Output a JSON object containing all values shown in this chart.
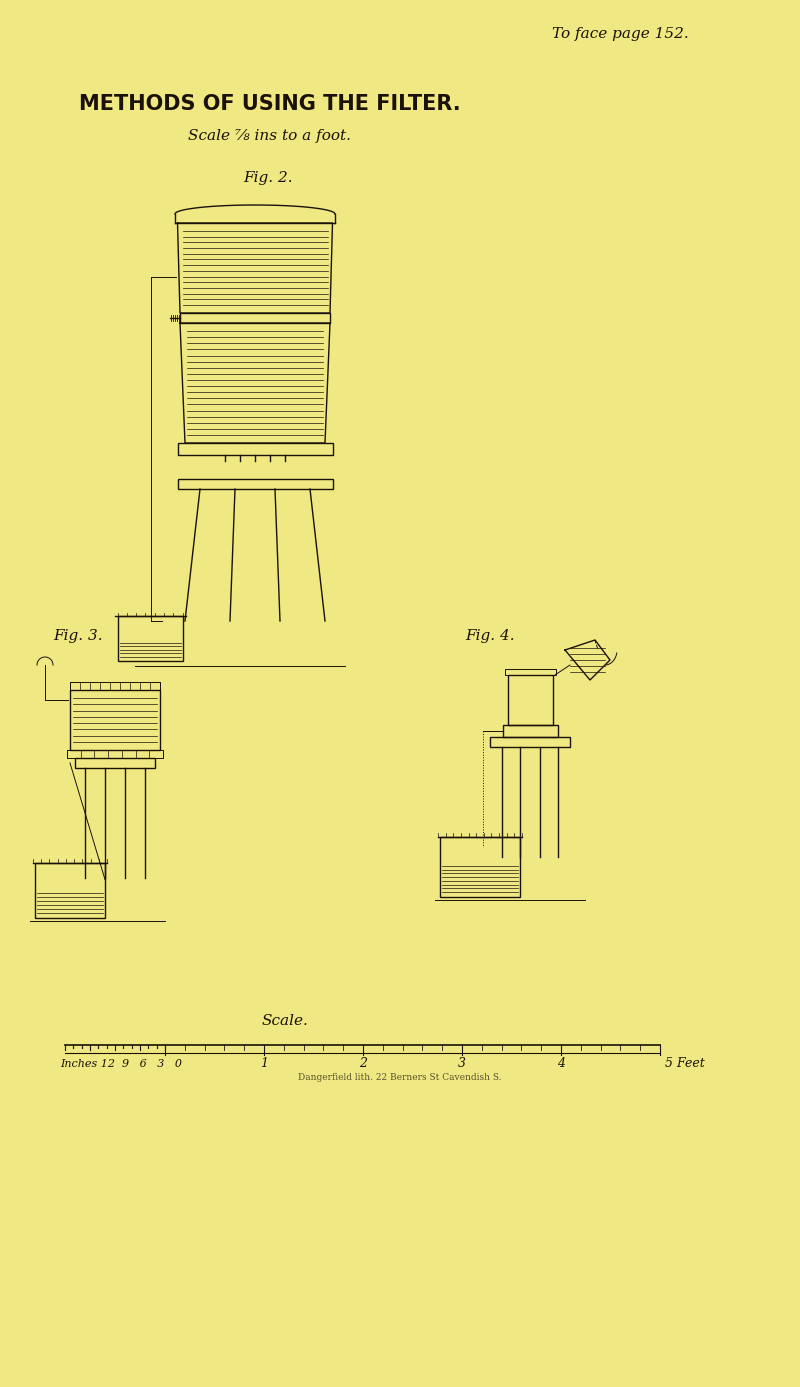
{
  "bg_color": "#f0e882",
  "page_bg": "#e8dc6e",
  "ink_color": "#1a1208",
  "title_text": "METHODS OF USING THE FILTER.",
  "subtitle_text": "Scale ⅞ ins to a foot.",
  "page_ref": "To face page 152.",
  "fig2_label": "Fig. 2.",
  "fig3_label": "Fig. 3.",
  "fig4_label": "Fig. 4.",
  "scale_label": "Scale.",
  "scale_inches_label": "Inches 12  9   6   3   0",
  "scale_feet_label": "5 Feet",
  "scale_numbers": [
    "1",
    "2",
    "3",
    "4"
  ]
}
